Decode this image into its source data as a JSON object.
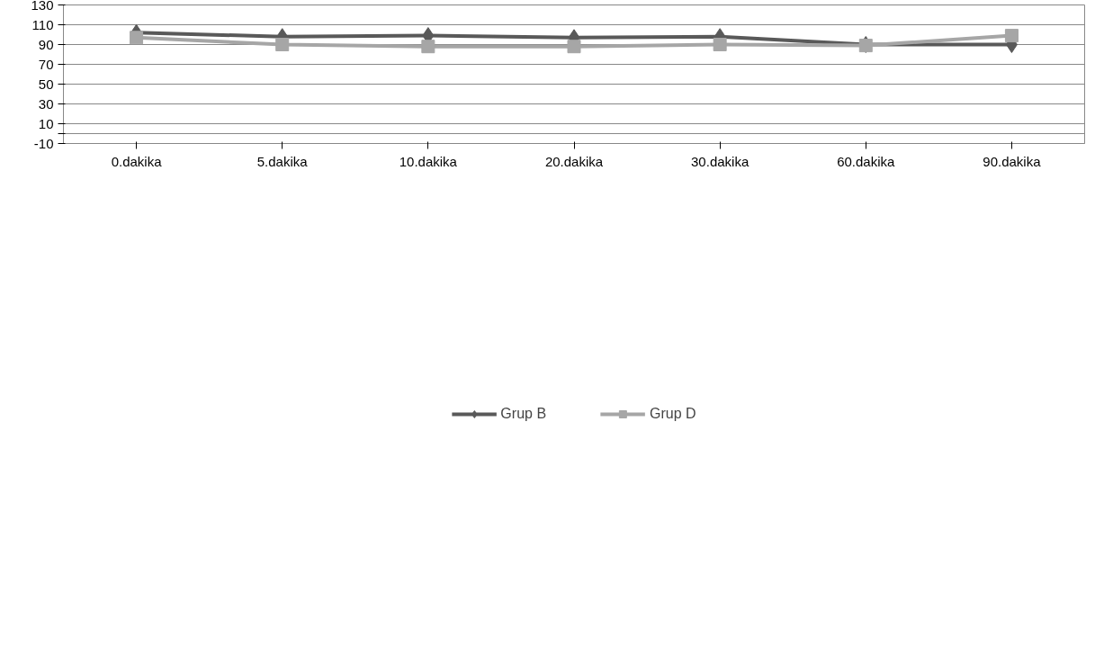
{
  "chart_data": {
    "type": "line",
    "categories": [
      "0.dakika",
      "5.dakika",
      "10.dakika",
      "20.dakika",
      "30.dakika",
      "60.dakika",
      "90.dakika"
    ],
    "series": [
      {
        "name": "Grup B",
        "color": "#595959",
        "marker": "diamond",
        "values": [
          102,
          98,
          99,
          97,
          98,
          90,
          90
        ]
      },
      {
        "name": "Grup D",
        "color": "#a6a6a6",
        "marker": "square",
        "values": [
          97,
          90,
          88,
          88,
          90,
          89,
          99
        ]
      }
    ],
    "ylim": [
      -10,
      130
    ],
    "yticks": [
      -10,
      {
        "value": 0,
        "label": null
      },
      10,
      30,
      50,
      70,
      90,
      110,
      130
    ],
    "grid": "y",
    "legend": "bottom",
    "line_style": "solid"
  }
}
